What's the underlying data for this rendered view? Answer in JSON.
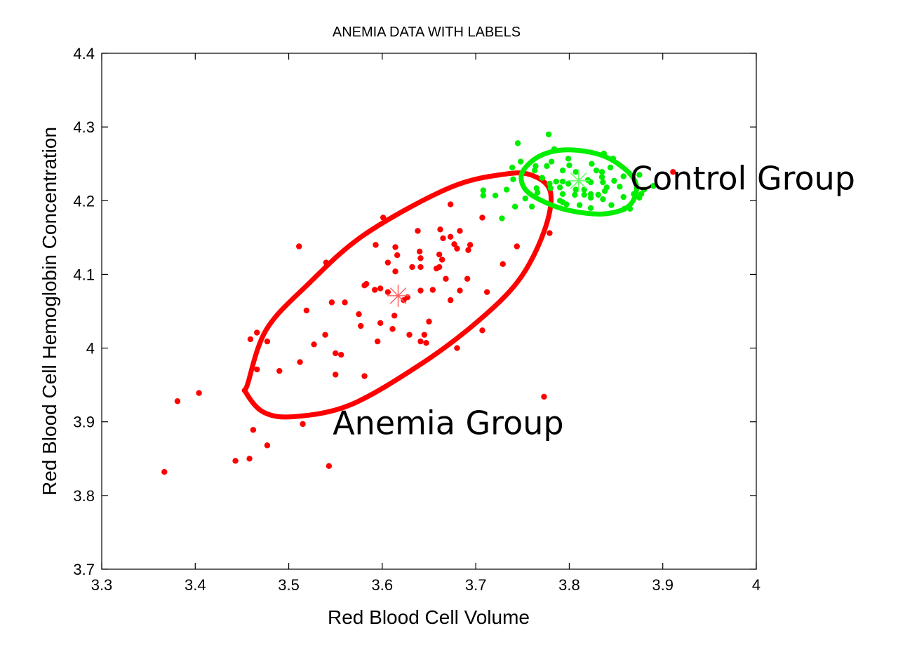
{
  "chart_data": {
    "type": "scatter",
    "title": "ANEMIA DATA WITH LABELS",
    "xlabel": "Red Blood Cell Volume",
    "ylabel": "Red Blood Cell Hemoglobin Concentration",
    "xlim": [
      3.3,
      4.0
    ],
    "ylim": [
      3.7,
      4.4
    ],
    "xticks": [
      3.3,
      3.4,
      3.5,
      3.6,
      3.7,
      3.8,
      3.9,
      4.0
    ],
    "xtick_labels": [
      "3.3",
      "3.4",
      "3.5",
      "3.6",
      "3.7",
      "3.8",
      "3.9",
      "4"
    ],
    "yticks": [
      3.7,
      3.8,
      3.9,
      4.0,
      4.1,
      4.2,
      4.3,
      4.4
    ],
    "ytick_labels": [
      "3.7",
      "3.8",
      "3.9",
      "4",
      "4.1",
      "4.2",
      "4.3",
      "4.4"
    ],
    "grid": false,
    "series": [
      {
        "name": "Anemia Group",
        "color": "#ff0000",
        "centroid": [
          3.617,
          4.071
        ],
        "ellipse": [
          [
            3.456,
            3.951
          ],
          [
            3.476,
            4.025
          ],
          [
            3.521,
            4.087
          ],
          [
            3.581,
            4.154
          ],
          [
            3.671,
            4.217
          ],
          [
            3.731,
            4.236
          ],
          [
            3.761,
            4.234
          ],
          [
            3.78,
            4.211
          ],
          [
            3.773,
            4.158
          ],
          [
            3.746,
            4.092
          ],
          [
            3.701,
            4.035
          ],
          [
            3.641,
            3.978
          ],
          [
            3.566,
            3.923
          ],
          [
            3.506,
            3.907
          ],
          [
            3.473,
            3.913
          ],
          [
            3.454,
            3.94
          ]
        ],
        "points": [
          [
            3.673,
            4.195
          ],
          [
            3.601,
            4.177
          ],
          [
            3.707,
            4.177
          ],
          [
            3.511,
            4.138
          ],
          [
            3.593,
            4.14
          ],
          [
            3.638,
            4.159
          ],
          [
            3.662,
            4.161
          ],
          [
            3.683,
            4.159
          ],
          [
            3.673,
            4.151
          ],
          [
            3.665,
            4.149
          ],
          [
            3.677,
            4.141
          ],
          [
            3.694,
            4.14
          ],
          [
            3.68,
            4.135
          ],
          [
            3.692,
            4.133
          ],
          [
            3.614,
            4.137
          ],
          [
            3.616,
            4.126
          ],
          [
            3.64,
            4.131
          ],
          [
            3.641,
            4.122
          ],
          [
            3.661,
            4.127
          ],
          [
            3.664,
            4.12
          ],
          [
            3.744,
            4.138
          ],
          [
            3.779,
            4.156
          ],
          [
            3.54,
            4.116
          ],
          [
            3.606,
            4.116
          ],
          [
            3.632,
            4.11
          ],
          [
            3.641,
            4.11
          ],
          [
            3.661,
            4.11
          ],
          [
            3.658,
            4.108
          ],
          [
            3.614,
            4.104
          ],
          [
            3.729,
            4.114
          ],
          [
            3.668,
            4.094
          ],
          [
            3.691,
            4.094
          ],
          [
            3.583,
            4.087
          ],
          [
            3.581,
            4.085
          ],
          [
            3.592,
            4.079
          ],
          [
            3.598,
            4.081
          ],
          [
            3.606,
            4.076
          ],
          [
            3.641,
            4.078
          ],
          [
            3.654,
            4.079
          ],
          [
            3.683,
            4.078
          ],
          [
            3.712,
            4.076
          ],
          [
            3.627,
            4.069
          ],
          [
            3.623,
            4.065
          ],
          [
            3.673,
            4.065
          ],
          [
            3.546,
            4.062
          ],
          [
            3.56,
            4.062
          ],
          [
            3.519,
            4.051
          ],
          [
            3.575,
            4.046
          ],
          [
            3.613,
            4.044
          ],
          [
            3.577,
            4.03
          ],
          [
            3.598,
            4.034
          ],
          [
            3.65,
            4.036
          ],
          [
            3.611,
            4.026
          ],
          [
            3.466,
            4.021
          ],
          [
            3.459,
            4.012
          ],
          [
            3.477,
            4.009
          ],
          [
            3.539,
            4.018
          ],
          [
            3.527,
            4.005
          ],
          [
            3.629,
            4.018
          ],
          [
            3.645,
            4.018
          ],
          [
            3.641,
            4.009
          ],
          [
            3.647,
            4.007
          ],
          [
            3.595,
            4.009
          ],
          [
            3.707,
            4.024
          ],
          [
            3.55,
            3.993
          ],
          [
            3.556,
            3.991
          ],
          [
            3.512,
            3.981
          ],
          [
            3.68,
            4.0
          ],
          [
            3.466,
            3.971
          ],
          [
            3.49,
            3.969
          ],
          [
            3.55,
            3.964
          ],
          [
            3.581,
            3.962
          ],
          [
            3.773,
            3.934
          ],
          [
            3.515,
            3.897
          ],
          [
            3.462,
            3.889
          ],
          [
            3.477,
            3.868
          ],
          [
            3.443,
            3.847
          ],
          [
            3.458,
            3.85
          ],
          [
            3.543,
            3.84
          ],
          [
            3.367,
            3.832
          ],
          [
            3.381,
            3.928
          ],
          [
            3.404,
            3.939
          ],
          [
            3.911,
            4.239
          ]
        ]
      },
      {
        "name": "Control Group",
        "color": "#00ee00",
        "centroid": [
          3.81,
          4.227
        ],
        "ellipse": [
          [
            3.75,
            4.239
          ],
          [
            3.769,
            4.261
          ],
          [
            3.799,
            4.269
          ],
          [
            3.836,
            4.261
          ],
          [
            3.863,
            4.239
          ],
          [
            3.872,
            4.217
          ],
          [
            3.863,
            4.192
          ],
          [
            3.836,
            4.182
          ],
          [
            3.799,
            4.187
          ],
          [
            3.769,
            4.201
          ],
          [
            3.752,
            4.217
          ]
        ],
        "points": [
          [
            3.778,
            4.29
          ],
          [
            3.745,
            4.278
          ],
          [
            3.748,
            4.253
          ],
          [
            3.739,
            4.245
          ],
          [
            3.74,
            4.229
          ],
          [
            3.708,
            4.214
          ],
          [
            3.708,
            4.207
          ],
          [
            3.721,
            4.207
          ],
          [
            3.733,
            4.215
          ],
          [
            3.753,
            4.203
          ],
          [
            3.742,
            4.192
          ],
          [
            3.76,
            4.192
          ],
          [
            3.728,
            4.176
          ],
          [
            3.784,
            4.27
          ],
          [
            3.764,
            4.247
          ],
          [
            3.763,
            4.241
          ],
          [
            3.776,
            4.247
          ],
          [
            3.781,
            4.253
          ],
          [
            3.799,
            4.257
          ],
          [
            3.8,
            4.248
          ],
          [
            3.793,
            4.241
          ],
          [
            3.824,
            4.25
          ],
          [
            3.837,
            4.264
          ],
          [
            3.847,
            4.257
          ],
          [
            3.844,
            4.245
          ],
          [
            3.829,
            4.241
          ],
          [
            3.835,
            4.239
          ],
          [
            3.807,
            4.239
          ],
          [
            3.771,
            4.231
          ],
          [
            3.779,
            4.223
          ],
          [
            3.786,
            4.226
          ],
          [
            3.793,
            4.226
          ],
          [
            3.799,
            4.223
          ],
          [
            3.82,
            4.228
          ],
          [
            3.823,
            4.225
          ],
          [
            3.835,
            4.232
          ],
          [
            3.836,
            4.225
          ],
          [
            3.848,
            4.227
          ],
          [
            3.854,
            4.219
          ],
          [
            3.858,
            4.233
          ],
          [
            3.78,
            4.217
          ],
          [
            3.79,
            4.218
          ],
          [
            3.765,
            4.217
          ],
          [
            3.807,
            4.215
          ],
          [
            3.816,
            4.215
          ],
          [
            3.84,
            4.218
          ],
          [
            3.838,
            4.213
          ],
          [
            3.793,
            4.209
          ],
          [
            3.806,
            4.208
          ],
          [
            3.816,
            4.208
          ],
          [
            3.823,
            4.209
          ],
          [
            3.831,
            4.208
          ],
          [
            3.823,
            4.204
          ],
          [
            3.836,
            4.202
          ],
          [
            3.858,
            4.205
          ],
          [
            3.869,
            4.209
          ],
          [
            3.877,
            4.209
          ],
          [
            3.875,
            4.204
          ],
          [
            3.79,
            4.2
          ],
          [
            3.793,
            4.198
          ],
          [
            3.797,
            4.195
          ],
          [
            3.811,
            4.194
          ],
          [
            3.823,
            4.19
          ],
          [
            3.845,
            4.194
          ],
          [
            3.859,
            4.189
          ],
          [
            3.865,
            4.189
          ],
          [
            3.766,
            4.211
          ],
          [
            3.88,
            4.215
          ],
          [
            3.89,
            4.22
          ],
          [
            3.875,
            4.235
          ]
        ]
      }
    ],
    "annotations": [
      {
        "text": "Anemia Group",
        "x": 3.547,
        "y": 3.883
      },
      {
        "text": "Control Group",
        "x": 3.865,
        "y": 4.215
      }
    ]
  }
}
